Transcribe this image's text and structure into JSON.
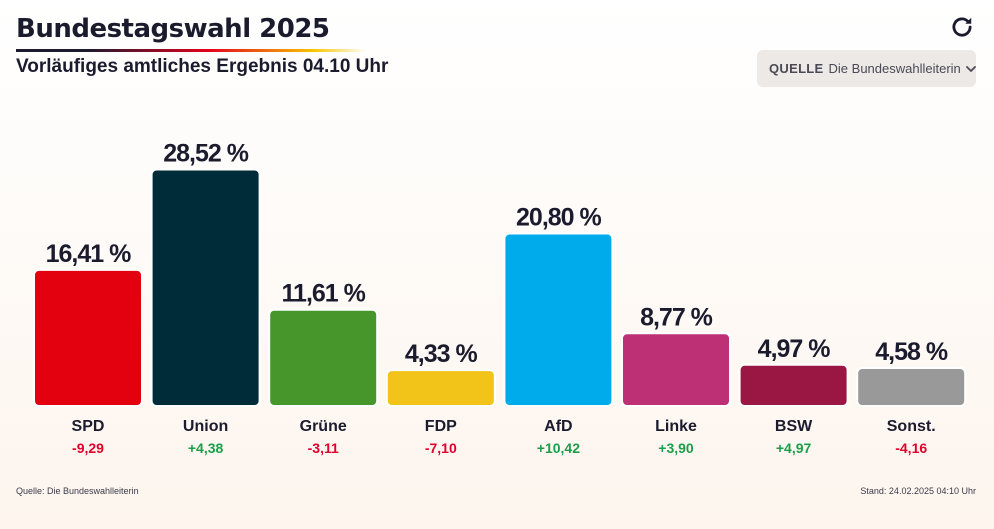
{
  "header": {
    "title": "Bundestagswahl 2025",
    "subtitle": "Vorläufiges amtliches Ergebnis 04.10 Uhr"
  },
  "toolbar": {
    "refresh_icon": "refresh-icon"
  },
  "source_select": {
    "label": "QUELLE",
    "value": "Die Bundeswahlleiterin",
    "icon": "chevron-down-icon"
  },
  "footer": {
    "source": "Quelle: Die Bundeswahlleiterin",
    "timestamp": "Stand: 24.02.2025 04:10 Uhr"
  },
  "colors": {
    "positive": "#1a9e4b",
    "negative": "#e0002a"
  },
  "chart_data": {
    "type": "bar",
    "categories": [
      "SPD",
      "Union",
      "Grüne",
      "FDP",
      "AfD",
      "Linke",
      "BSW",
      "Sonst."
    ],
    "values": [
      16.41,
      28.52,
      11.61,
      4.33,
      20.8,
      8.77,
      4.97,
      4.58
    ],
    "value_labels": [
      "16,41 %",
      "28,52 %",
      "11,61 %",
      "4,33 %",
      "20,80 %",
      "8,77 %",
      "4,97 %",
      "4,58 %"
    ],
    "changes": [
      -9.29,
      4.38,
      -3.11,
      -7.1,
      10.42,
      3.9,
      4.97,
      -4.16
    ],
    "change_labels": [
      "-9,29",
      "+4,38",
      "-3,11",
      "-7,10",
      "+10,42",
      "+3,90",
      "+4,97",
      "-4,16"
    ],
    "bar_colors": [
      "#e3000f",
      "#002c3a",
      "#46962b",
      "#f2c318",
      "#00abeb",
      "#be3075",
      "#9b1743",
      "#999999"
    ],
    "ylim": [
      0,
      30
    ],
    "grid": false
  }
}
